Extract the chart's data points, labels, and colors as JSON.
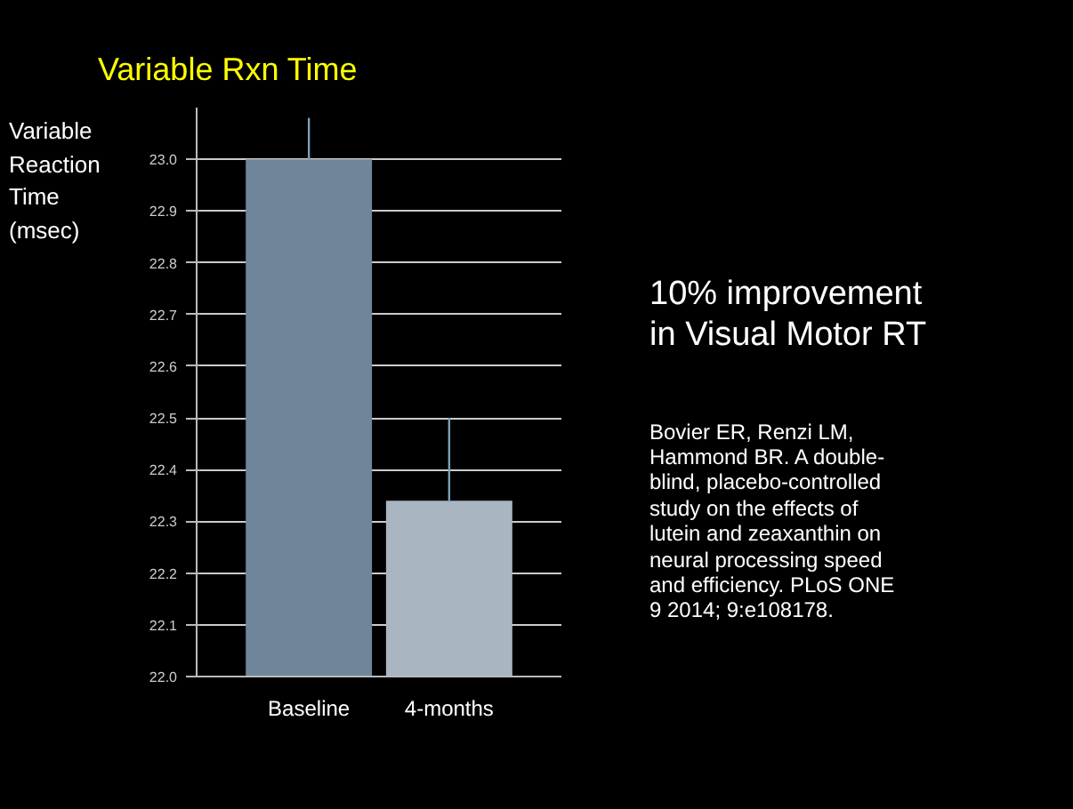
{
  "chart_data": {
    "type": "bar",
    "title": "Variable Rxn Time",
    "ylabel": "Variable Reaction Time (msec)",
    "categories": [
      "Baseline",
      "4-months"
    ],
    "values": [
      23.0,
      22.34
    ],
    "colors": [
      "#6f8599",
      "#a9b6c2"
    ],
    "errors": [
      [
        23.0,
        23.08
      ],
      [
        22.34,
        22.5
      ]
    ],
    "ylim": [
      22.0,
      23.1
    ],
    "yticks": [
      {
        "value": 22.0,
        "label": "22.0"
      },
      22.1,
      22.2,
      22.3,
      22.4,
      22.5,
      22.6,
      22.7,
      22.8,
      22.9,
      {
        "value": 23.0,
        "label": "23.0"
      }
    ],
    "grid": "y",
    "annotations": [
      "10% improvement in Visual Motor RT",
      "Bovier ER, Renzi LM, Hammond BR. A double-blind, placebo-controlled study on the effects of lutein and zeaxanthin on neural processing speed and efficiency. PLoS ONE 9 2014; 9:e108178."
    ]
  }
}
